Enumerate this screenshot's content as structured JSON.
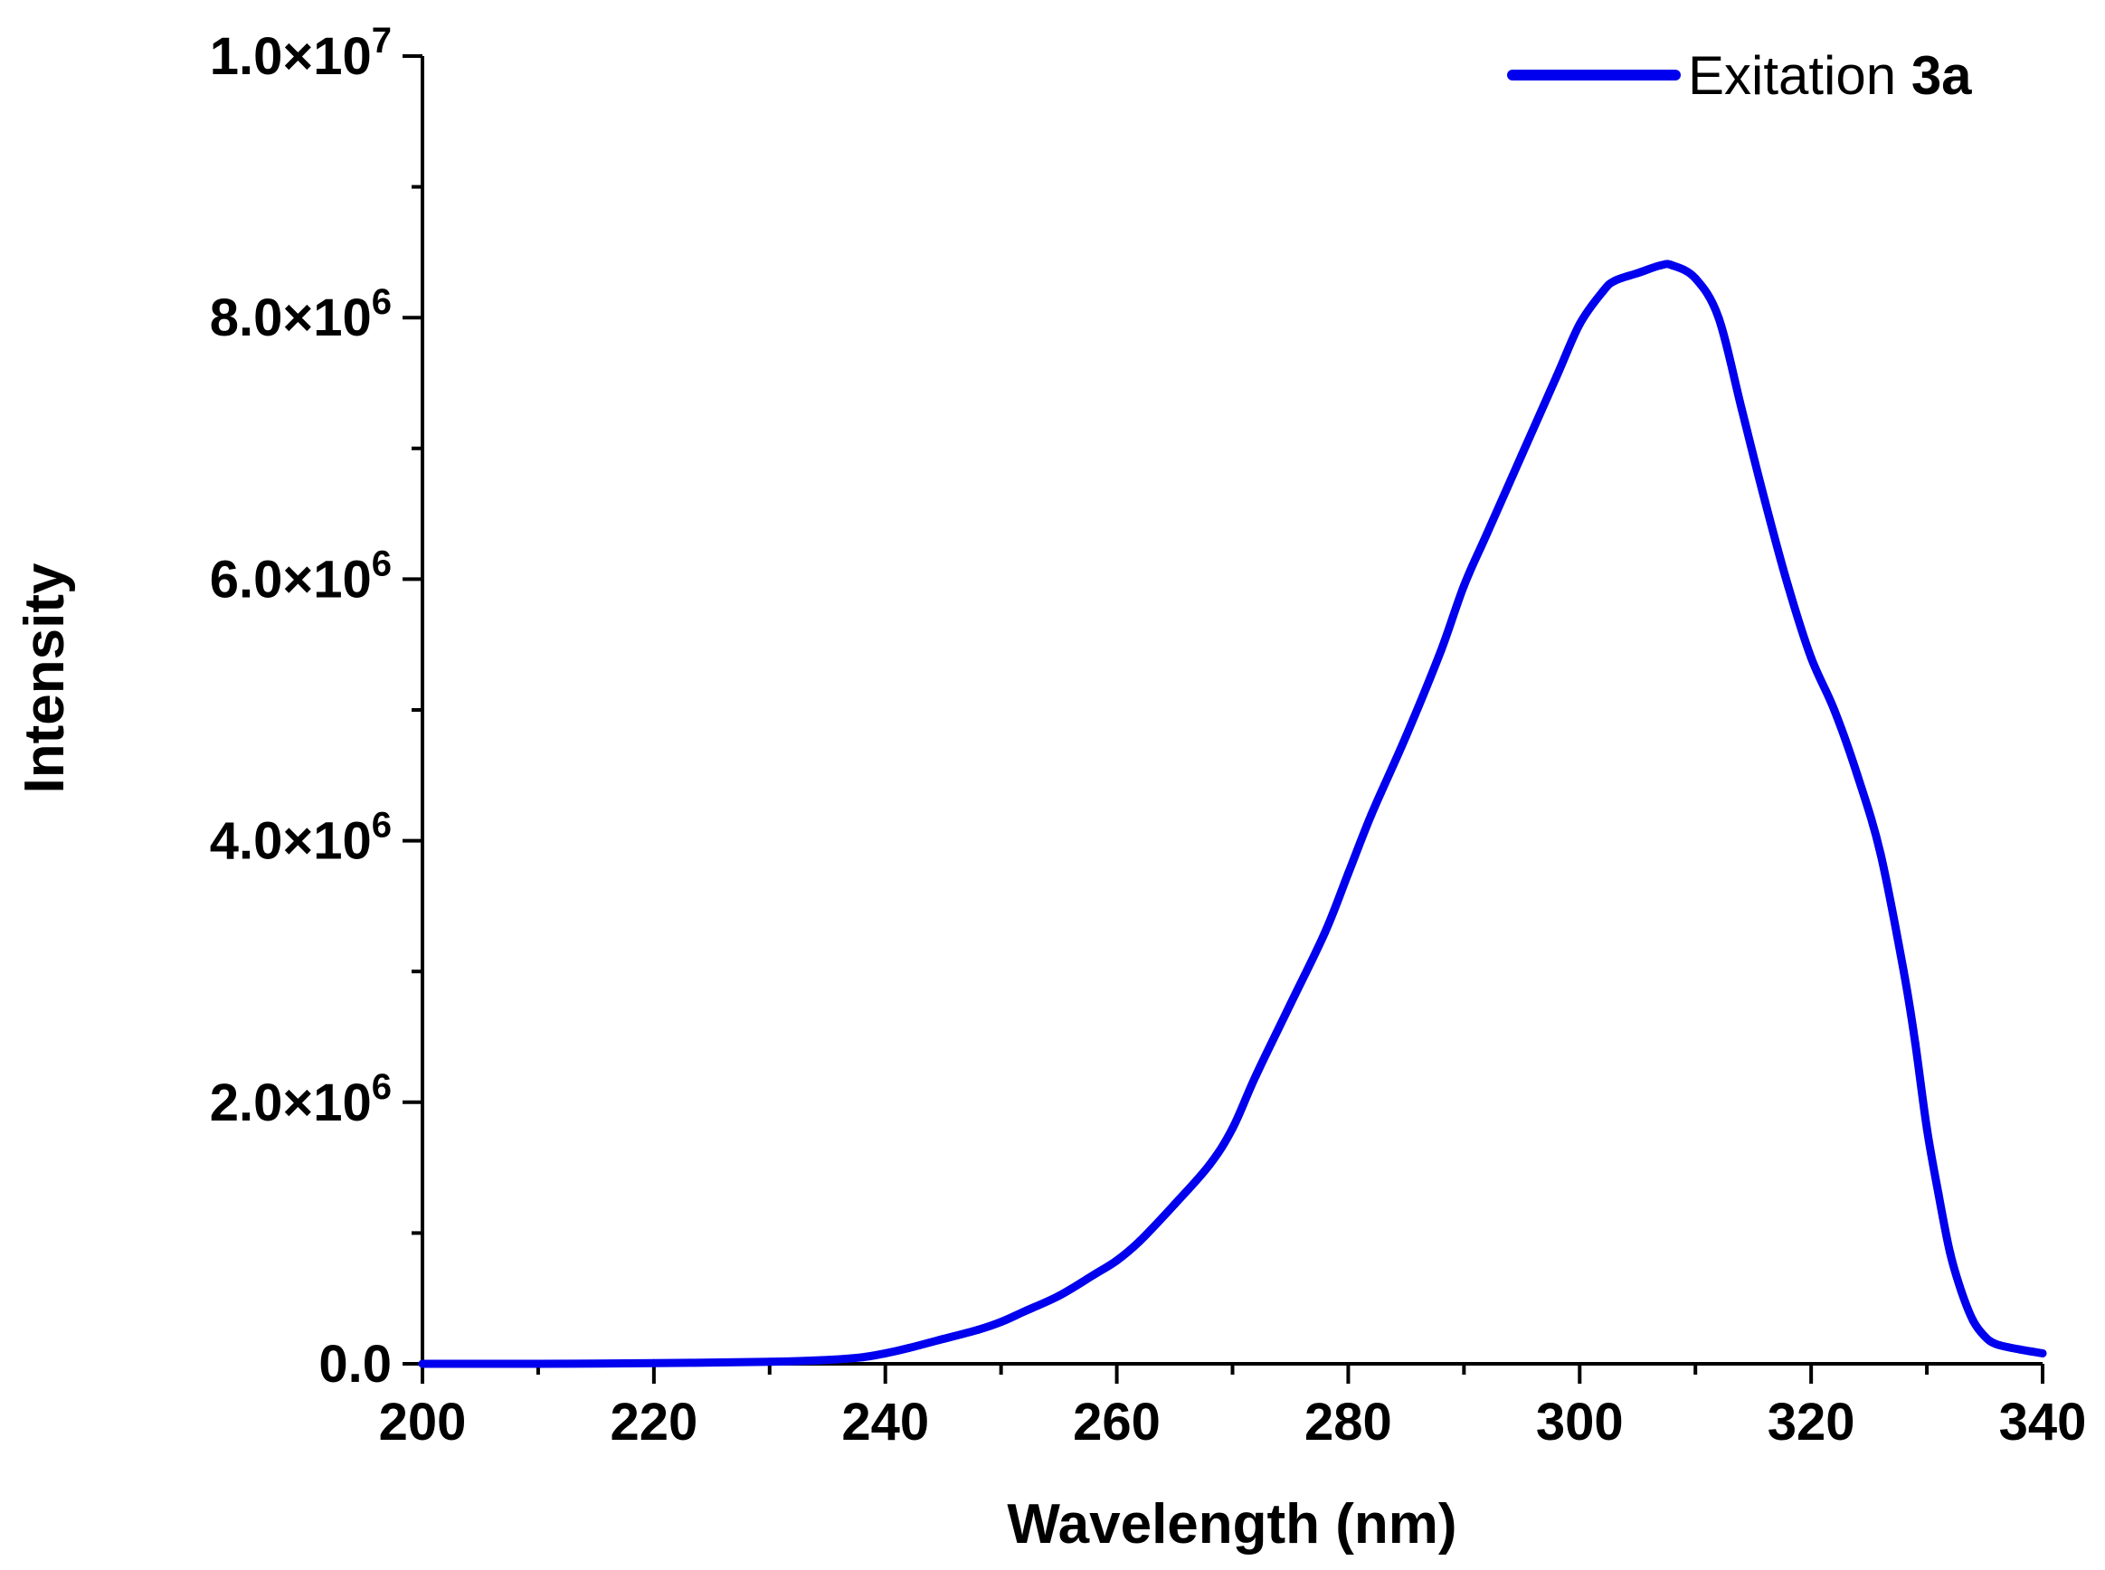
{
  "chart_data": {
    "type": "line",
    "xlabel": "Wavelength (nm)",
    "ylabel": "Intensity",
    "xlim": [
      200,
      340
    ],
    "ylim": [
      0,
      10000000
    ],
    "grid": false,
    "x_ticks": [
      200,
      220,
      240,
      260,
      280,
      300,
      320,
      340
    ],
    "y_ticks": [
      {
        "value": 0,
        "mantissa": "0.0",
        "exponent": ""
      },
      {
        "value": 2000000,
        "mantissa": "2.0×10",
        "exponent": "6"
      },
      {
        "value": 4000000,
        "mantissa": "4.0×10",
        "exponent": "6"
      },
      {
        "value": 6000000,
        "mantissa": "6.0×10",
        "exponent": "6"
      },
      {
        "value": 8000000,
        "mantissa": "8.0×10",
        "exponent": "6"
      },
      {
        "value": 10000000,
        "mantissa": "1.0×10",
        "exponent": "7"
      }
    ],
    "legend": {
      "position": "top-right",
      "label": "Exitation",
      "label_bold": "3a"
    },
    "series": [
      {
        "name": "Exitation 3a",
        "color": "#0000ee",
        "x": [
          200,
          210,
          220,
          230,
          235,
          238,
          240,
          242,
          245,
          248,
          250,
          252,
          255,
          258,
          260,
          262,
          265,
          268,
          270,
          272,
          275,
          278,
          280,
          282,
          285,
          288,
          290,
          292,
          295,
          298,
          300,
          302,
          303,
          305,
          307,
          308,
          310,
          312,
          314,
          316,
          318,
          320,
          322,
          324,
          326,
          328,
          329,
          330,
          331,
          332,
          333,
          334,
          335,
          336,
          338,
          340
        ],
        "y": [
          0,
          0,
          5000,
          15000,
          30000,
          50000,
          80000,
          120000,
          190000,
          260000,
          320000,
          400000,
          520000,
          680000,
          790000,
          940000,
          1220000,
          1520000,
          1800000,
          2200000,
          2750000,
          3300000,
          3750000,
          4200000,
          4800000,
          5450000,
          5950000,
          6350000,
          6950000,
          7550000,
          7950000,
          8200000,
          8280000,
          8340000,
          8400000,
          8400000,
          8300000,
          8000000,
          7300000,
          6600000,
          5950000,
          5400000,
          5000000,
          4500000,
          3900000,
          3000000,
          2450000,
          1800000,
          1300000,
          850000,
          550000,
          330000,
          210000,
          150000,
          110000,
          80000
        ]
      }
    ]
  }
}
